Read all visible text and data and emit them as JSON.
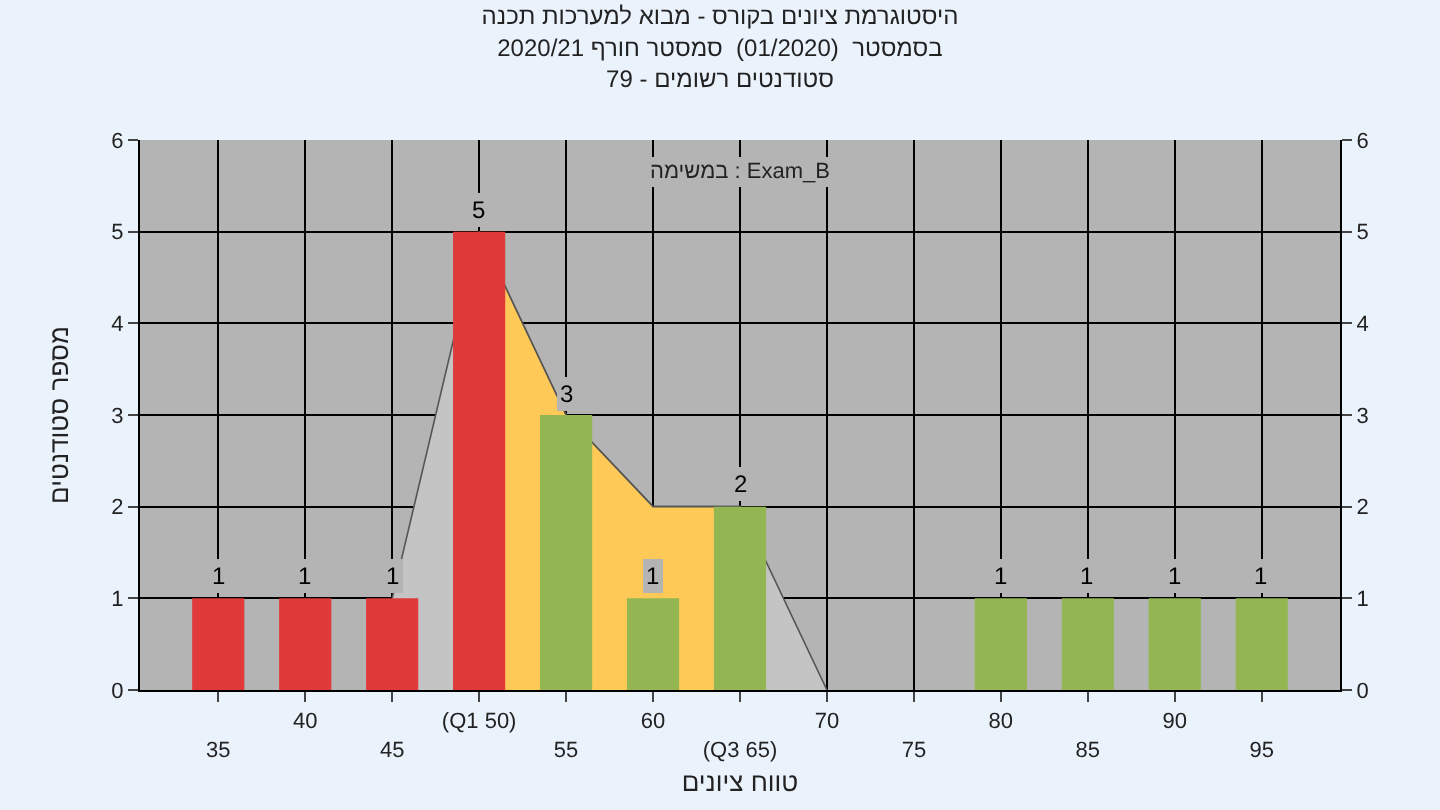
{
  "chart_data": {
    "type": "bar",
    "title": "היסטוגרמת ציונים בקורס - מבוא למערכות תכנה\nבסמסטר  (01/2020)  סמסטר חורף 2020/21\nסטודנטים רשומים - 79",
    "xlabel": "טווח ציונים",
    "ylabel": "מספר סטודנטים",
    "categories": [
      "35",
      "40",
      "45",
      "(Q1 50)",
      "55",
      "60",
      "(Q3 65)",
      "70",
      "75",
      "80",
      "85",
      "90",
      "95"
    ],
    "series": [
      {
        "type": "area",
        "color": "#c4c4c4",
        "values": [
          null,
          null,
          1,
          5,
          3,
          2,
          2,
          0,
          null,
          null,
          null,
          null,
          null
        ]
      },
      {
        "type": "area",
        "color": "#ffc957",
        "values": [
          null,
          null,
          null,
          5,
          3,
          2,
          2,
          null,
          null,
          null,
          null,
          null,
          null
        ]
      },
      {
        "axis": "y2",
        "colors": [
          "#e03a3a",
          "#e03a3a",
          "#e03a3a",
          "#e03a3a",
          "#93b552",
          "#93b552",
          "#93b552",
          "#93b552",
          "#93b552",
          "#93b552",
          "#93b552",
          "#93b552",
          "#93b552"
        ],
        "values": [
          1,
          1,
          1,
          5,
          3,
          1,
          2,
          0,
          0,
          1,
          1,
          1,
          1
        ],
        "value_labels": [
          "1",
          "1",
          "1",
          "5",
          "3",
          "1",
          "2",
          null,
          null,
          "1",
          "1",
          "1",
          "1"
        ]
      }
    ],
    "ylim": [
      0,
      6
    ],
    "yticks": [
      0,
      1,
      2,
      3,
      4,
      5,
      6
    ],
    "y2lim": [
      0,
      6
    ],
    "y2ticks": [
      0,
      1,
      2,
      3,
      4,
      5,
      6
    ],
    "grid": true,
    "legend": false,
    "annotations": [
      "במשימה : Exam_B"
    ]
  }
}
